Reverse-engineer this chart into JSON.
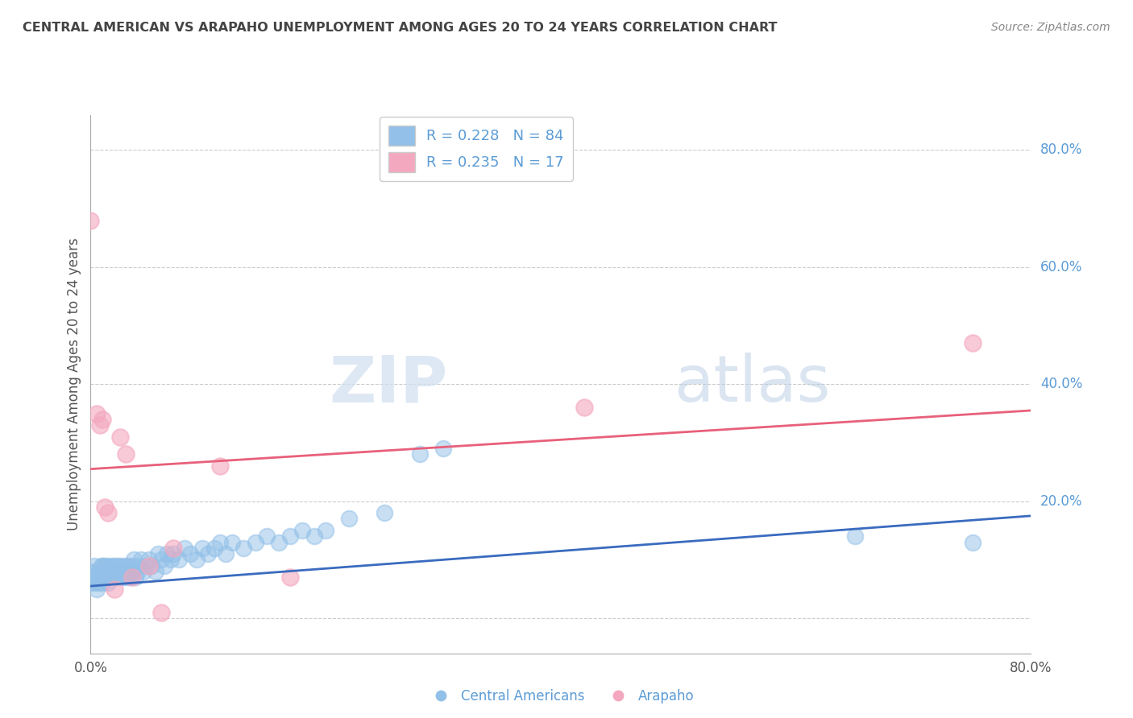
{
  "title": "CENTRAL AMERICAN VS ARAPAHO UNEMPLOYMENT AMONG AGES 20 TO 24 YEARS CORRELATION CHART",
  "source": "Source: ZipAtlas.com",
  "ylabel": "Unemployment Among Ages 20 to 24 years",
  "background_color": "#ffffff",
  "grid_color": "#cccccc",
  "watermark_zip": "ZIP",
  "watermark_atlas": "atlas",
  "blue_color": "#92c0e8",
  "pink_color": "#f4a8bf",
  "blue_line_color": "#3a6bbf",
  "pink_line_color": "#e8607a",
  "legend_blue_label": "R = 0.228   N = 84",
  "legend_pink_label": "R = 0.235   N = 17",
  "legend_bottom_blue": "Central Americans",
  "legend_bottom_pink": "Arapaho",
  "x_min": 0.0,
  "x_max": 0.8,
  "y_min": -0.06,
  "y_max": 0.86,
  "yticks": [
    0.0,
    0.2,
    0.4,
    0.6,
    0.8
  ],
  "ytick_labels": [
    "",
    "20.0%",
    "40.0%",
    "60.0%",
    "80.0%"
  ],
  "blue_scatter_x": [
    0.0,
    0.0,
    0.002,
    0.003,
    0.004,
    0.005,
    0.005,
    0.006,
    0.007,
    0.008,
    0.008,
    0.009,
    0.01,
    0.01,
    0.01,
    0.011,
    0.012,
    0.012,
    0.013,
    0.014,
    0.015,
    0.015,
    0.016,
    0.017,
    0.018,
    0.019,
    0.02,
    0.02,
    0.021,
    0.022,
    0.023,
    0.024,
    0.025,
    0.026,
    0.027,
    0.028,
    0.029,
    0.03,
    0.031,
    0.032,
    0.033,
    0.034,
    0.035,
    0.036,
    0.037,
    0.038,
    0.04,
    0.041,
    0.043,
    0.045,
    0.047,
    0.05,
    0.052,
    0.055,
    0.057,
    0.06,
    0.063,
    0.065,
    0.068,
    0.07,
    0.075,
    0.08,
    0.085,
    0.09,
    0.095,
    0.1,
    0.105,
    0.11,
    0.115,
    0.12,
    0.13,
    0.14,
    0.15,
    0.16,
    0.17,
    0.18,
    0.19,
    0.2,
    0.22,
    0.25,
    0.28,
    0.3,
    0.65,
    0.75
  ],
  "blue_scatter_y": [
    0.06,
    0.08,
    0.07,
    0.09,
    0.06,
    0.08,
    0.05,
    0.07,
    0.06,
    0.08,
    0.07,
    0.09,
    0.06,
    0.07,
    0.09,
    0.08,
    0.07,
    0.09,
    0.08,
    0.07,
    0.09,
    0.06,
    0.08,
    0.07,
    0.09,
    0.08,
    0.07,
    0.09,
    0.08,
    0.07,
    0.09,
    0.08,
    0.07,
    0.09,
    0.08,
    0.07,
    0.09,
    0.08,
    0.07,
    0.09,
    0.08,
    0.07,
    0.09,
    0.08,
    0.1,
    0.07,
    0.08,
    0.09,
    0.1,
    0.08,
    0.09,
    0.1,
    0.09,
    0.08,
    0.11,
    0.1,
    0.09,
    0.11,
    0.1,
    0.11,
    0.1,
    0.12,
    0.11,
    0.1,
    0.12,
    0.11,
    0.12,
    0.13,
    0.11,
    0.13,
    0.12,
    0.13,
    0.14,
    0.13,
    0.14,
    0.15,
    0.14,
    0.15,
    0.17,
    0.18,
    0.28,
    0.29,
    0.14,
    0.13
  ],
  "pink_scatter_x": [
    0.0,
    0.005,
    0.008,
    0.01,
    0.012,
    0.015,
    0.02,
    0.025,
    0.03,
    0.035,
    0.05,
    0.06,
    0.07,
    0.11,
    0.17,
    0.42,
    0.75
  ],
  "pink_scatter_y": [
    0.68,
    0.35,
    0.33,
    0.34,
    0.19,
    0.18,
    0.05,
    0.31,
    0.28,
    0.07,
    0.09,
    0.01,
    0.12,
    0.26,
    0.07,
    0.36,
    0.47
  ],
  "blue_trend_y_start": 0.055,
  "blue_trend_y_end": 0.175,
  "pink_trend_y_start": 0.255,
  "pink_trend_y_end": 0.355,
  "label_color": "#5b9bd5",
  "title_color": "#444444",
  "source_color": "#888888"
}
